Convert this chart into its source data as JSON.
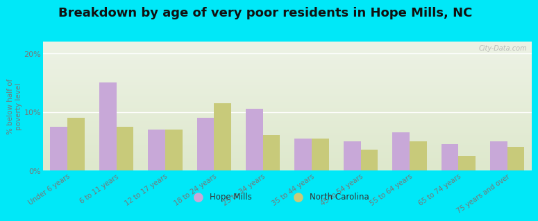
{
  "title": "Breakdown by age of very poor residents in Hope Mills, NC",
  "ylabel": "% below half of\npoverty level",
  "categories": [
    "Under 6 years",
    "6 to 11 years",
    "12 to 17 years",
    "18 to 24 years",
    "25 to 34 years",
    "35 to 44 years",
    "45 to 54 years",
    "55 to 64 years",
    "65 to 74 years",
    "75 years and over"
  ],
  "hope_mills": [
    7.5,
    15.0,
    7.0,
    9.0,
    10.5,
    5.5,
    5.0,
    6.5,
    4.5,
    5.0
  ],
  "north_carolina": [
    9.0,
    7.5,
    7.0,
    11.5,
    6.0,
    5.5,
    3.5,
    5.0,
    2.5,
    4.0
  ],
  "hope_mills_color": "#c8a8d8",
  "nc_color": "#c8ca7a",
  "background_outer": "#00e8f8",
  "ylim": [
    0,
    22
  ],
  "yticks": [
    0,
    10,
    20
  ],
  "ytick_labels": [
    "0%",
    "10%",
    "20%"
  ],
  "bar_width": 0.35,
  "title_fontsize": 13,
  "legend_labels": [
    "Hope Mills",
    "North Carolina"
  ],
  "watermark": "City-Data.com"
}
